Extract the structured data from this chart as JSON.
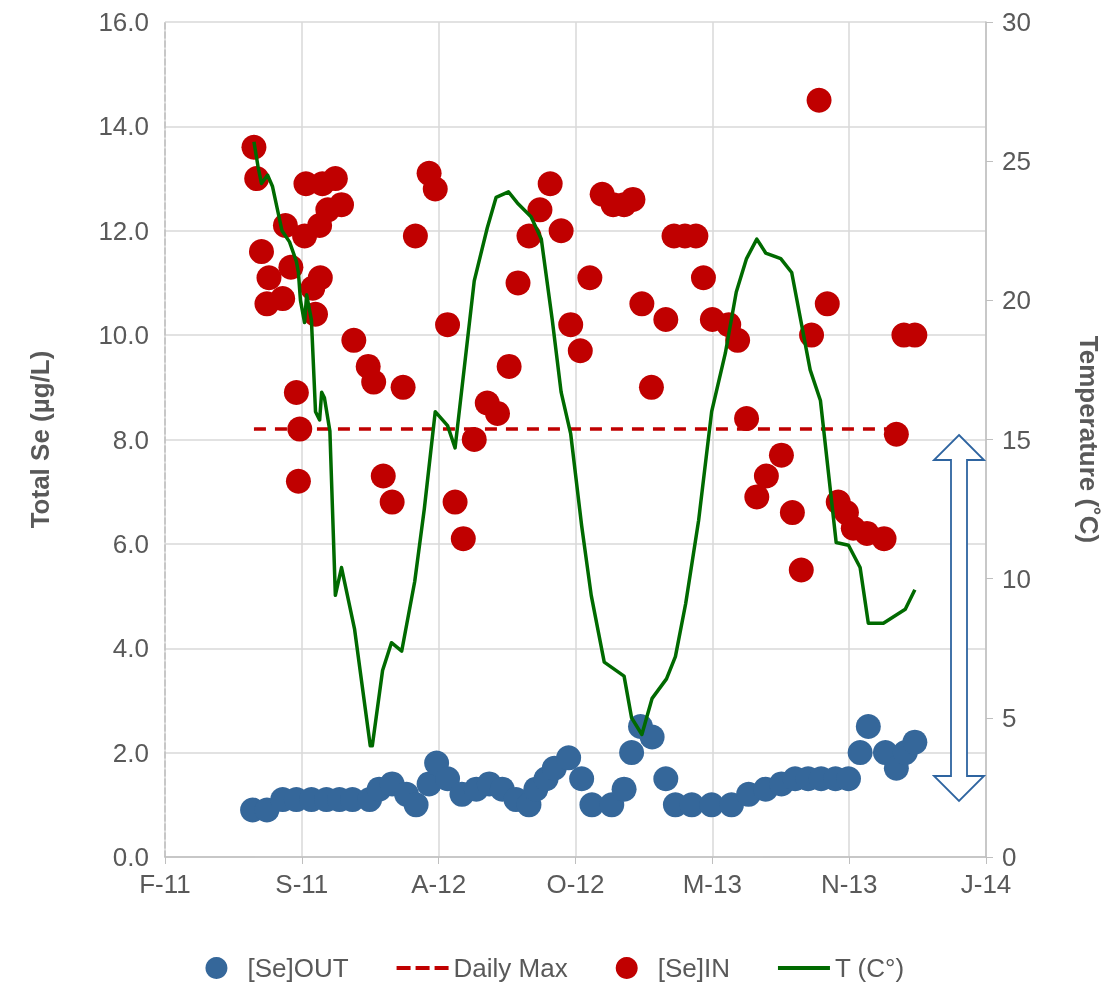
{
  "chart_data": {
    "type": "scatter",
    "ylabel": "Total Se (µg/L)",
    "y2label": "Temperature (˚C)",
    "xlim": [
      "2011-02-28",
      "2014-06-12"
    ],
    "xticks": [
      {
        "value": "2011-02-28",
        "label": "F-11"
      },
      {
        "value": "2011-09-16",
        "label": "S-11"
      },
      {
        "value": "2012-04-03",
        "label": "A-12"
      },
      {
        "value": "2012-10-20",
        "label": "O-12"
      },
      {
        "value": "2013-05-08",
        "label": "M-13"
      },
      {
        "value": "2013-11-24",
        "label": "N-13"
      },
      {
        "value": "2014-06-12",
        "label": "J-14"
      }
    ],
    "ylim": [
      0,
      16
    ],
    "yticks": [
      {
        "value": 0,
        "label": "0.0"
      },
      {
        "value": 2,
        "label": "2.0"
      },
      {
        "value": 4,
        "label": "4.0"
      },
      {
        "value": 6,
        "label": "6.0"
      },
      {
        "value": 8,
        "label": "8.0"
      },
      {
        "value": 10,
        "label": "10.0"
      },
      {
        "value": 12,
        "label": "12.0"
      },
      {
        "value": 14,
        "label": "14.0"
      },
      {
        "value": 16,
        "label": "16.0"
      }
    ],
    "y2lim": [
      0,
      30
    ],
    "y2ticks": [
      0,
      5,
      10,
      15,
      20,
      25,
      30
    ],
    "grid": true,
    "legend": "bottom",
    "series": [
      {
        "name": "[Se]OUT",
        "type": "scatter",
        "marker": "circle",
        "color": "#35679a",
        "x": [
          "2011-07-06",
          "2011-07-27",
          "2011-08-19",
          "2011-09-08",
          "2011-09-30",
          "2011-10-22",
          "2011-11-10",
          "2011-11-29",
          "2011-12-24",
          "2012-01-07",
          "2012-01-26",
          "2012-02-16",
          "2012-03-01",
          "2012-03-20",
          "2012-03-31",
          "2012-04-16",
          "2012-05-07",
          "2012-05-28",
          "2012-06-16",
          "2012-07-05",
          "2012-07-25",
          "2012-08-13",
          "2012-08-23",
          "2012-09-07",
          "2012-09-19",
          "2012-10-10",
          "2012-10-29",
          "2012-11-13",
          "2012-12-12",
          "2012-12-30",
          "2013-01-10",
          "2013-01-23",
          "2013-02-09",
          "2013-03-01",
          "2013-03-15",
          "2013-04-08",
          "2013-05-07",
          "2013-06-05",
          "2013-06-30",
          "2013-07-25",
          "2013-08-17",
          "2013-09-06",
          "2013-09-25",
          "2013-10-14",
          "2013-11-04",
          "2013-11-23",
          "2013-12-10",
          "2013-12-22",
          "2014-01-16",
          "2014-02-01",
          "2014-02-14",
          "2014-02-28"
        ],
        "values": [
          0.9,
          0.9,
          1.1,
          1.1,
          1.1,
          1.1,
          1.1,
          1.1,
          1.1,
          1.3,
          1.4,
          1.2,
          1.0,
          1.4,
          1.8,
          1.5,
          1.2,
          1.3,
          1.4,
          1.3,
          1.1,
          1.0,
          1.3,
          1.5,
          1.7,
          1.9,
          1.5,
          1.0,
          1.0,
          1.3,
          2.0,
          2.5,
          2.3,
          1.5,
          1.0,
          1.0,
          1.0,
          1.0,
          1.2,
          1.3,
          1.4,
          1.5,
          1.5,
          1.5,
          1.5,
          1.5,
          2.0,
          2.5,
          2.0,
          1.7,
          2.0,
          2.2
        ]
      },
      {
        "name": "Daily Max",
        "type": "line",
        "marker": "none",
        "line_style": "dashed",
        "color": "#c00000",
        "x": [
          "2011-07-08",
          "2014-02-01"
        ],
        "values": [
          8.2,
          8.2
        ]
      },
      {
        "name": "[Se]IN",
        "type": "scatter",
        "marker": "circle",
        "color": "#c00000",
        "x": [
          "2011-07-08",
          "2011-07-12",
          "2011-07-19",
          "2011-07-30",
          "2011-07-27",
          "2011-08-19",
          "2011-08-23",
          "2011-08-31",
          "2011-09-08",
          "2011-09-13",
          "2011-09-11",
          "2011-09-20",
          "2011-09-22",
          "2011-10-02",
          "2011-10-06",
          "2011-10-12",
          "2011-10-13",
          "2011-10-16",
          "2011-10-24",
          "2011-11-04",
          "2011-11-13",
          "2011-12-01",
          "2011-12-22",
          "2011-12-30",
          "2012-01-13",
          "2012-01-26",
          "2012-02-11",
          "2012-02-29",
          "2012-03-20",
          "2012-03-29",
          "2012-04-16",
          "2012-04-27",
          "2012-05-09",
          "2012-05-25",
          "2012-06-13",
          "2012-06-28",
          "2012-07-15",
          "2012-07-28",
          "2012-08-13",
          "2012-08-29",
          "2012-09-13",
          "2012-09-29",
          "2012-10-13",
          "2012-10-27",
          "2012-11-10",
          "2012-11-28",
          "2012-12-14",
          "2012-12-30",
          "2013-01-12",
          "2013-01-25",
          "2013-02-08",
          "2013-03-01",
          "2013-03-13",
          "2013-03-29",
          "2013-04-14",
          "2013-04-25",
          "2013-05-08",
          "2013-06-01",
          "2013-06-14",
          "2013-06-27",
          "2013-07-12",
          "2013-07-26",
          "2013-08-17",
          "2013-09-02",
          "2013-09-15",
          "2013-09-30",
          "2013-10-11",
          "2013-10-23",
          "2013-11-08",
          "2013-11-20",
          "2013-11-30",
          "2013-12-20",
          "2014-01-14",
          "2014-02-01",
          "2014-02-12",
          "2014-02-28"
        ],
        "values": [
          13.6,
          13.0,
          11.6,
          11.1,
          10.6,
          10.7,
          12.1,
          11.3,
          8.9,
          8.2,
          7.2,
          11.9,
          12.9,
          10.9,
          10.4,
          12.1,
          11.1,
          12.9,
          12.4,
          13.0,
          12.5,
          9.9,
          9.4,
          9.1,
          7.3,
          6.8,
          9.0,
          11.9,
          13.1,
          12.8,
          10.2,
          6.8,
          6.1,
          8.0,
          8.7,
          8.5,
          9.4,
          11.0,
          11.9,
          12.4,
          12.9,
          12.0,
          10.2,
          9.7,
          11.1,
          12.7,
          12.5,
          12.5,
          12.6,
          10.6,
          9.0,
          10.3,
          11.9,
          11.9,
          11.9,
          11.1,
          10.3,
          10.2,
          9.9,
          8.4,
          6.9,
          7.3,
          7.7,
          6.6,
          5.5,
          10.0,
          14.5,
          10.6,
          6.8,
          6.6,
          6.3,
          6.2,
          6.1,
          8.1,
          10.0,
          10.0
        ]
      },
      {
        "name": "T (C°)",
        "type": "line",
        "axis": "y2",
        "marker": "none",
        "line_style": "solid",
        "color": "#006a00",
        "x": [
          "2011-07-08",
          "2011-07-14",
          "2011-07-19",
          "2011-07-28",
          "2011-08-04",
          "2011-08-18",
          "2011-08-29",
          "2011-09-08",
          "2011-09-11",
          "2011-09-14",
          "2011-09-20",
          "2011-09-23",
          "2011-09-30",
          "2011-10-06",
          "2011-10-12",
          "2011-10-15",
          "2011-10-19",
          "2011-10-27",
          "2011-11-04",
          "2011-11-13",
          "2011-12-02",
          "2011-12-25",
          "2011-12-28",
          "2012-01-12",
          "2012-01-25",
          "2012-02-09",
          "2012-02-28",
          "2012-03-13",
          "2012-03-29",
          "2012-04-16",
          "2012-04-27",
          "2012-05-25",
          "2012-06-13",
          "2012-06-26",
          "2012-07-14",
          "2012-07-27",
          "2012-08-16",
          "2012-08-31",
          "2012-09-16",
          "2012-09-29",
          "2012-10-13",
          "2012-10-29",
          "2012-11-12",
          "2012-12-01",
          "2012-12-30",
          "2013-01-10",
          "2013-01-25",
          "2013-02-09",
          "2013-03-02",
          "2013-03-15",
          "2013-03-30",
          "2013-04-18",
          "2013-05-07",
          "2013-05-27",
          "2013-06-12",
          "2013-06-27",
          "2013-07-12",
          "2013-07-25",
          "2013-08-16",
          "2013-09-01",
          "2013-09-28",
          "2013-10-13",
          "2013-11-05",
          "2013-11-23",
          "2013-12-10",
          "2013-12-22",
          "2014-01-13",
          "2014-02-14",
          "2014-02-28"
        ],
        "values": [
          25.7,
          24.8,
          24.2,
          24.5,
          24.1,
          22.5,
          22.1,
          21.4,
          21.0,
          20.0,
          19.2,
          20.2,
          19.3,
          16.0,
          15.7,
          16.7,
          16.5,
          15.3,
          9.4,
          10.4,
          8.2,
          4.0,
          4.0,
          6.7,
          7.7,
          7.4,
          9.9,
          12.5,
          16.0,
          15.5,
          14.7,
          20.7,
          22.6,
          23.7,
          23.9,
          23.5,
          23.0,
          22.2,
          19.3,
          16.7,
          15.2,
          11.9,
          9.4,
          7.0,
          6.5,
          5.0,
          4.4,
          5.7,
          6.4,
          7.2,
          9.1,
          12.1,
          16.0,
          18.1,
          20.3,
          21.5,
          22.2,
          21.7,
          21.5,
          21.0,
          17.5,
          16.4,
          11.3,
          11.2,
          10.4,
          8.4,
          8.4,
          8.9,
          9.6
        ]
      }
    ]
  }
}
